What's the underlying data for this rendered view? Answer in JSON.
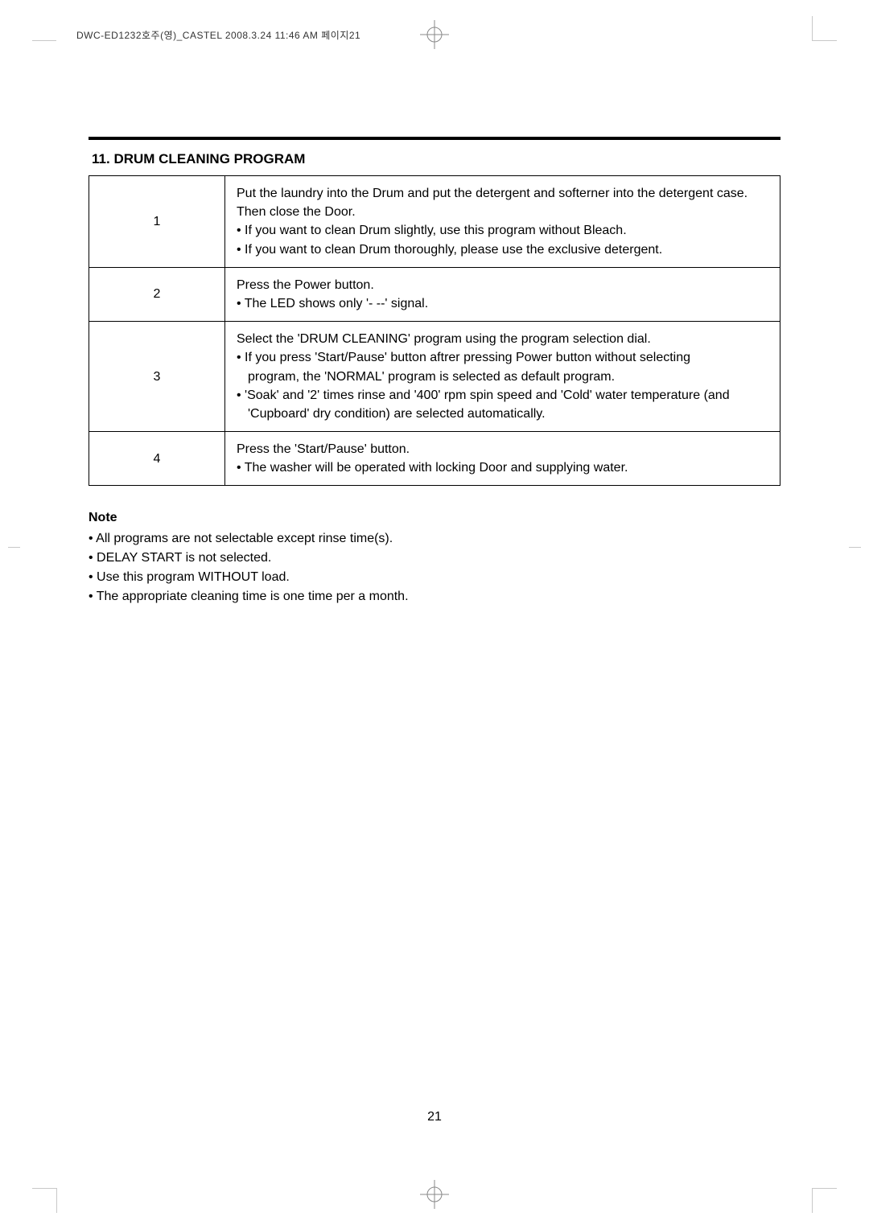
{
  "header_line": "DWC-ED1232호주(영)_CASTEL  2008.3.24 11:46 AM  페이지21",
  "section_number": "11.",
  "section_title": "DRUM CLEANING PROGRAM",
  "steps": [
    {
      "num": "1",
      "lines": [
        "Put the laundry into the Drum and put the detergent and softerner into the detergent case.",
        "Then close the Door.",
        "• If you want to clean Drum slightly, use this program without Bleach.",
        "• If you want to clean Drum thoroughly, please use the exclusive detergent."
      ]
    },
    {
      "num": "2",
      "lines": [
        "Press the Power button.",
        "• The LED shows only '- --' signal."
      ]
    },
    {
      "num": "3",
      "lines": [
        "Select the 'DRUM CLEANING' program using the program selection dial.",
        "• If you press 'Start/Pause' button aftrer pressing Power button without selecting",
        "program, the 'NORMAL' program is selected as default program.",
        "• 'Soak' and '2' times rinse and '400' rpm spin speed and 'Cold' water temperature (and",
        "'Cupboard' dry condition) are selected automatically."
      ],
      "indents": [
        0,
        0,
        1,
        0,
        1
      ]
    },
    {
      "num": "4",
      "lines": [
        "Press the 'Start/Pause' button.",
        "• The washer will be operated with locking Door and supplying water."
      ]
    }
  ],
  "note_title": "Note",
  "note_lines": [
    "• All programs are not selectable except rinse time(s).",
    "• DELAY START is not selected.",
    "• Use this program WITHOUT load.",
    "• The appropriate cleaning time  is one time per a month."
  ],
  "page_number": "21",
  "colors": {
    "text": "#000000",
    "background": "#ffffff",
    "crop": "#c8c8c8"
  },
  "typography": {
    "body_fontsize_pt": 12,
    "title_fontsize_pt": 13
  }
}
